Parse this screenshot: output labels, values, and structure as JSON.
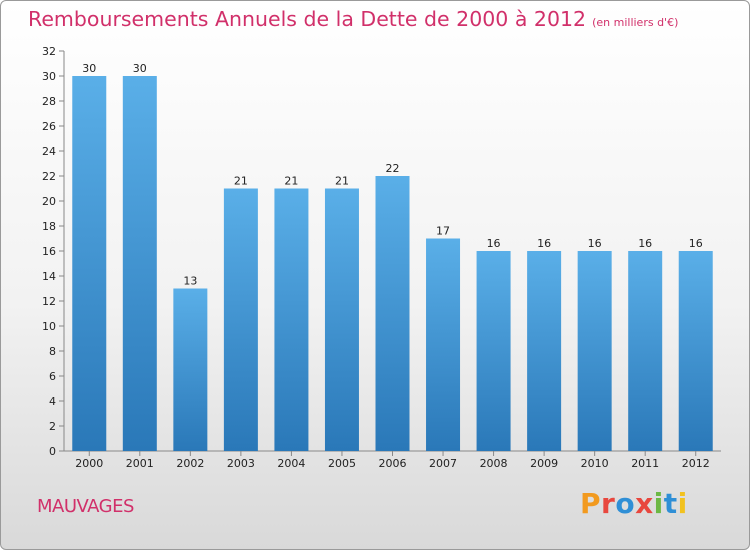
{
  "header": {
    "title": "Remboursements Annuels de la Dette de 2000 à 2012",
    "unit": "(en milliers d'€)"
  },
  "footer": {
    "location": "MAUVAGES",
    "logo_text": "Proxiti"
  },
  "colors": {
    "title": "#d1306a",
    "bar_light": "#5aafe8",
    "bar_dark": "#2a78b8",
    "logo_letters": [
      "#f29a1f",
      "#e8473e",
      "#2f8fd6",
      "#e8473e",
      "#6cb844",
      "#2f8fd6",
      "#f2c21f"
    ]
  },
  "chart_data": {
    "type": "bar",
    "title": "Remboursements Annuels de la Dette de 2000 à 2012",
    "categories": [
      "2000",
      "2001",
      "2002",
      "2003",
      "2004",
      "2005",
      "2006",
      "2007",
      "2008",
      "2009",
      "2010",
      "2011",
      "2012"
    ],
    "values": [
      30,
      30,
      13,
      21,
      21,
      21,
      22,
      17,
      16,
      16,
      16,
      16,
      16
    ],
    "data_labels": [
      "30",
      "30",
      "13",
      "21",
      "21",
      "21",
      "22",
      "17",
      "16",
      "16",
      "16",
      "16",
      "16"
    ],
    "ylim": [
      0,
      32
    ],
    "yticks": [
      0,
      2,
      4,
      6,
      8,
      10,
      12,
      14,
      16,
      18,
      20,
      22,
      24,
      26,
      28,
      30,
      32
    ],
    "grid": false,
    "legend": "none"
  }
}
